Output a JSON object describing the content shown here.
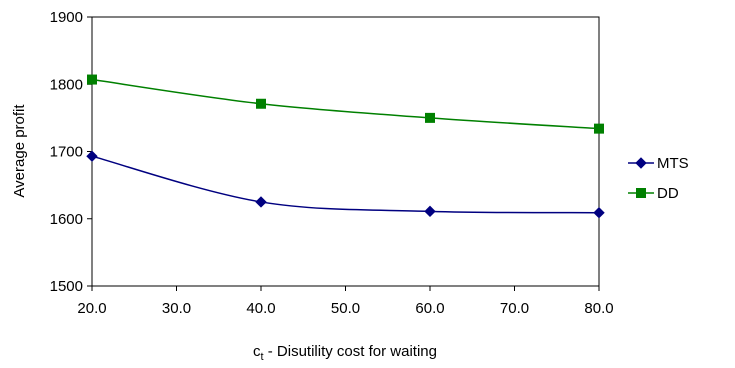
{
  "chart_data": {
    "type": "line",
    "x": [
      20,
      40,
      60,
      80
    ],
    "x_tick_labels": [
      "20.0",
      "30.0",
      "40.0",
      "50.0",
      "60.0",
      "70.0",
      "80.0"
    ],
    "y_tick_labels": [
      "1500",
      "1600",
      "1700",
      "1800",
      "1900"
    ],
    "xlim": [
      20,
      80
    ],
    "ylim": [
      1500,
      1900
    ],
    "xlabel_main": "c",
    "xlabel_sub": "t",
    "xlabel_rest": " - Disutility cost for waiting",
    "ylabel": "Average profit",
    "grid": false,
    "legend_position": "right",
    "smooth": true,
    "series": [
      {
        "name": "MTS",
        "color": "#000080",
        "marker": "diamond",
        "values": [
          1693,
          1625,
          1611,
          1609
        ]
      },
      {
        "name": "DD",
        "color": "#008000",
        "marker": "square",
        "values": [
          1807,
          1771,
          1750,
          1734
        ]
      }
    ]
  }
}
